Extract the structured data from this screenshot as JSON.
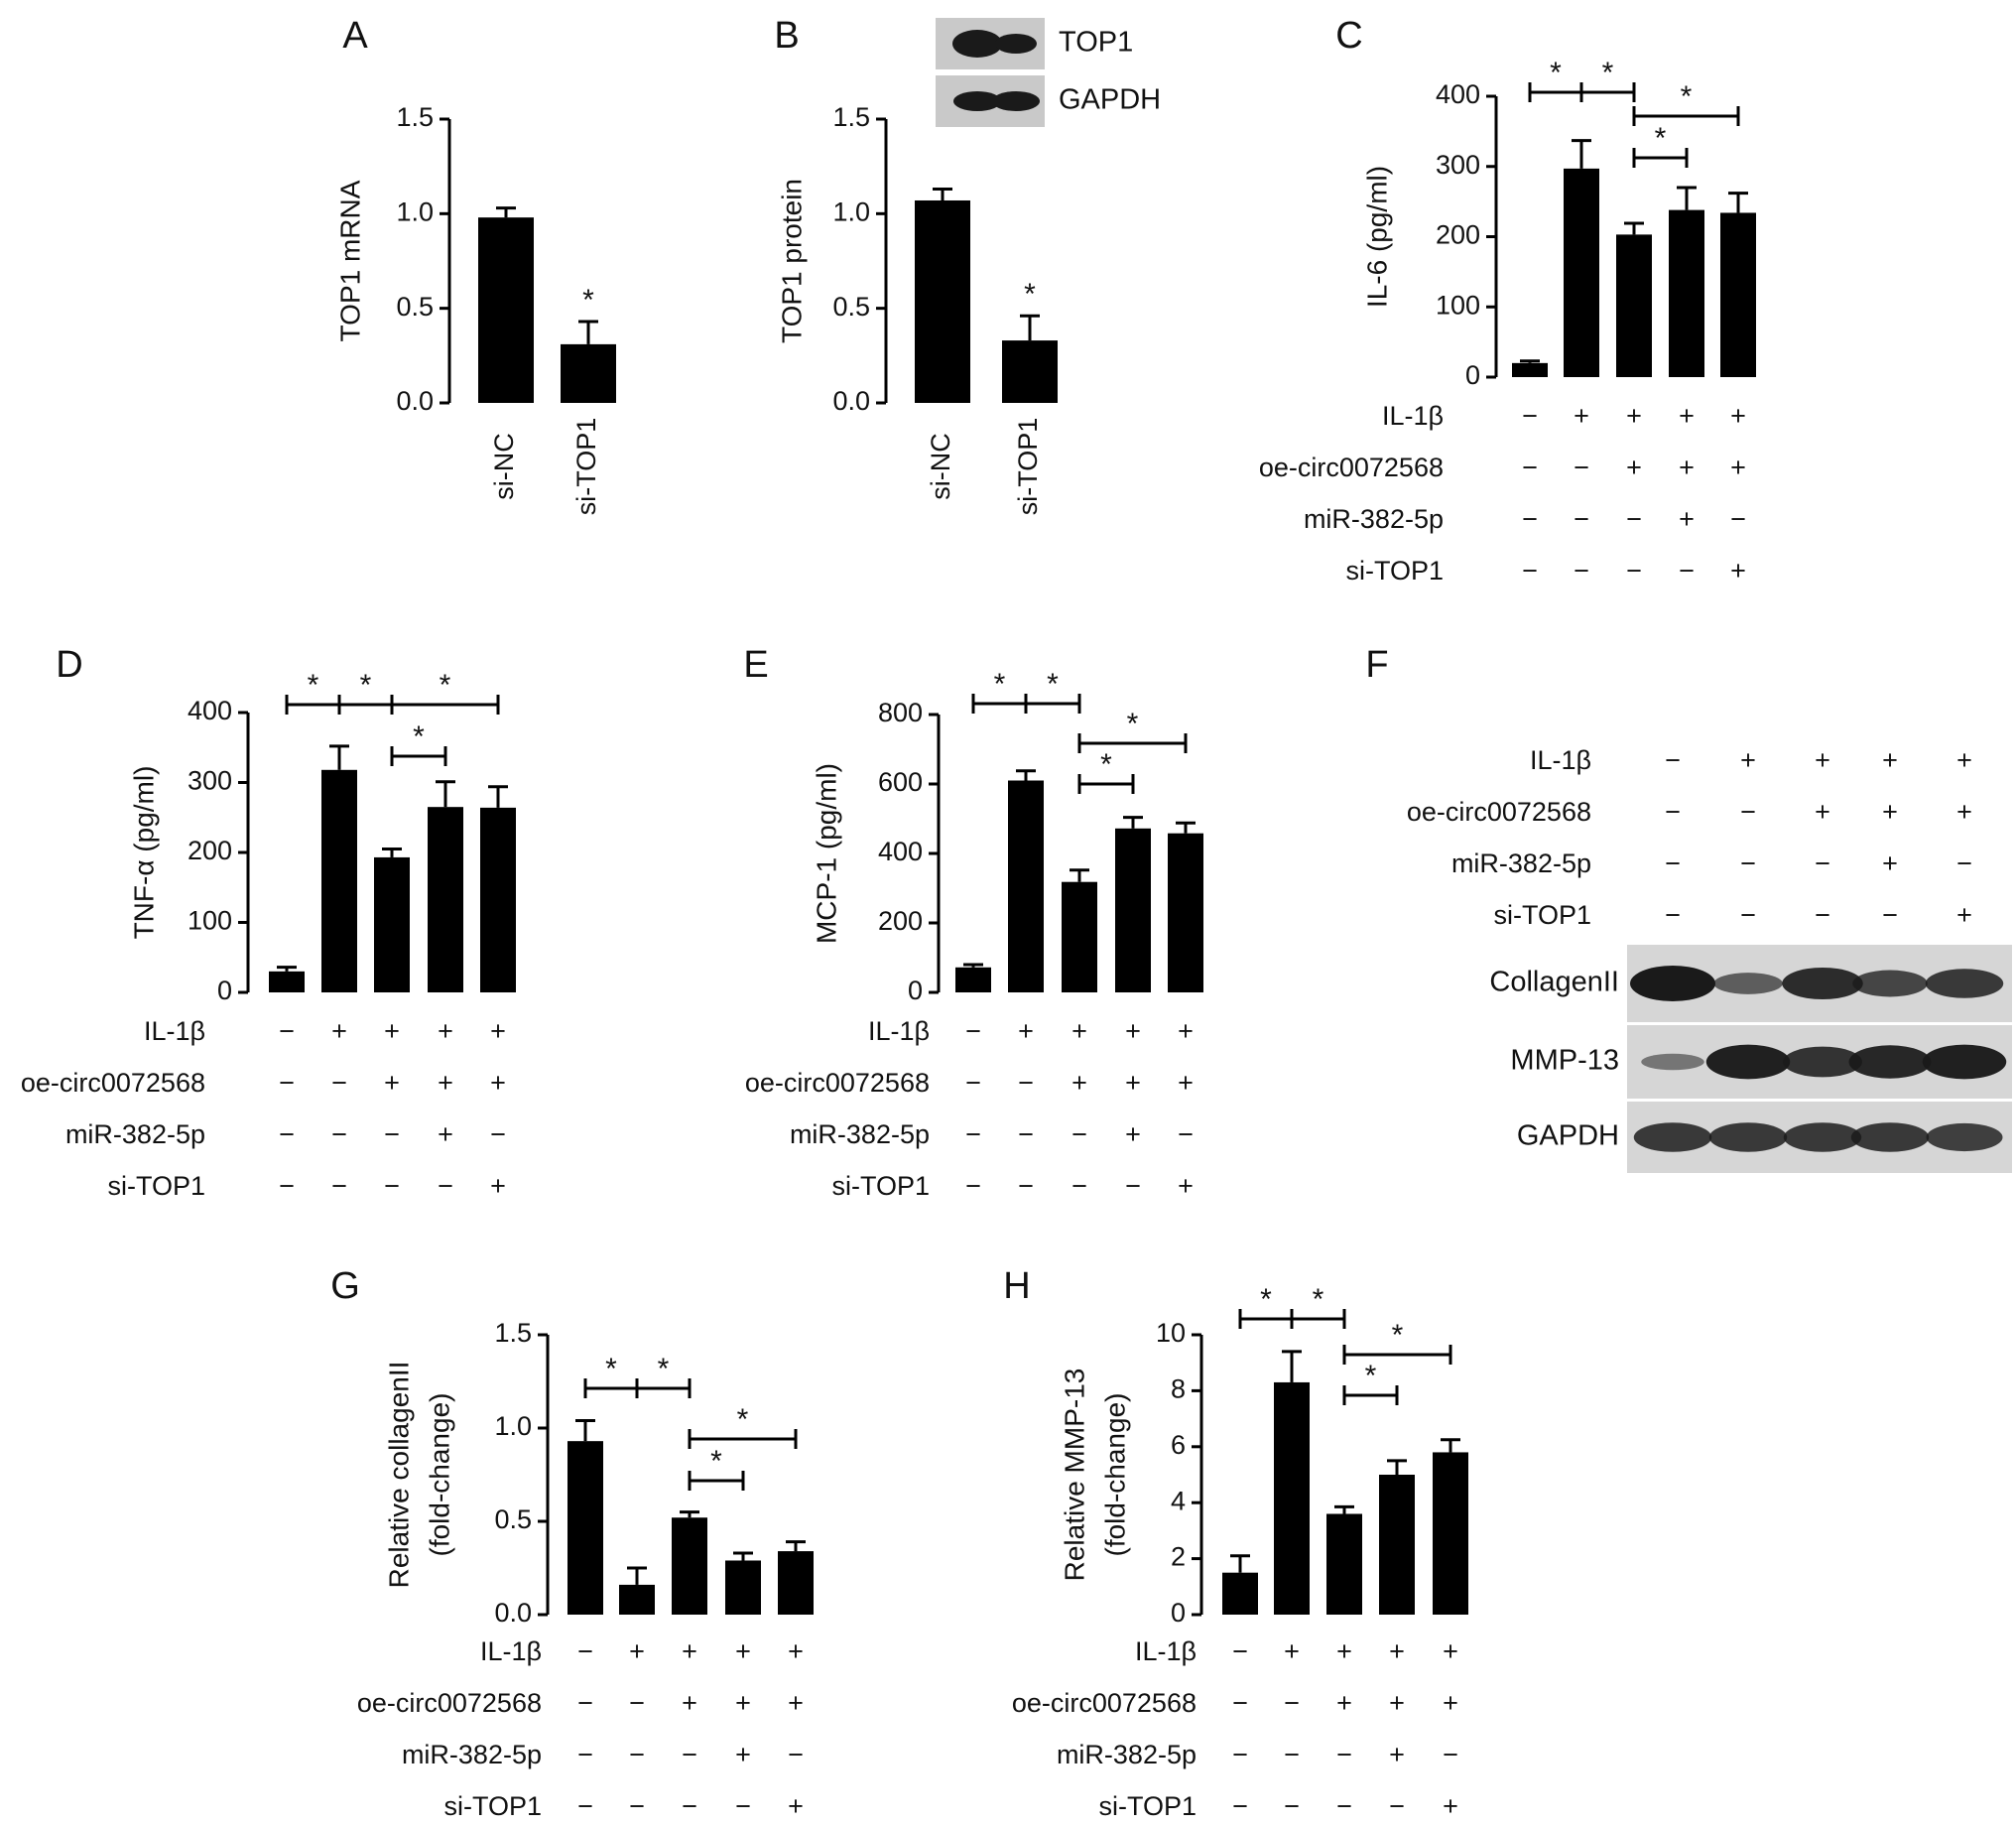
{
  "chart_data": [
    {
      "panel": "A",
      "type": "bar",
      "ylabel": "TOP1 mRNA",
      "ylim": [
        0,
        1.5
      ],
      "yticks": [
        "0.0",
        "0.5",
        "1.0",
        "1.5"
      ],
      "categories": [
        "si-NC",
        "si-TOP1"
      ],
      "values": [
        0.98,
        0.31
      ],
      "errors": [
        0.05,
        0.12
      ],
      "marks": [
        "",
        "*"
      ]
    },
    {
      "panel": "B",
      "type": "bar",
      "ylabel": "TOP1 protein",
      "ylim": [
        0,
        1.5
      ],
      "yticks": [
        "0.0",
        "0.5",
        "1.0",
        "1.5"
      ],
      "categories": [
        "si-NC",
        "si-TOP1"
      ],
      "values": [
        1.07,
        0.33
      ],
      "errors": [
        0.06,
        0.13
      ],
      "marks": [
        "",
        "*"
      ],
      "blot_labels": [
        "TOP1",
        "GAPDH"
      ]
    },
    {
      "panel": "C",
      "type": "bar",
      "ylabel": "IL-6 (pg/ml)",
      "ylim": [
        0,
        400
      ],
      "yticks": [
        "0",
        "100",
        "200",
        "300",
        "400"
      ],
      "values": [
        20,
        297,
        203,
        238,
        234
      ],
      "errors": [
        3,
        40,
        16,
        32,
        28
      ],
      "treatments": [
        {
          "label": "IL-1β",
          "signs": [
            "−",
            "+",
            "+",
            "+",
            "+"
          ]
        },
        {
          "label": "oe-circ0072568",
          "signs": [
            "−",
            "−",
            "+",
            "+",
            "+"
          ]
        },
        {
          "label": "miR-382-5p",
          "signs": [
            "−",
            "−",
            "−",
            "+",
            "−"
          ]
        },
        {
          "label": "si-TOP1",
          "signs": [
            "−",
            "−",
            "−",
            "−",
            "+"
          ]
        }
      ],
      "significance": [
        {
          "from": 0,
          "to": 1,
          "level": "top1",
          "label": "*"
        },
        {
          "from": 1,
          "to": 2,
          "level": "top1",
          "label": "*"
        },
        {
          "from": 2,
          "to": 4,
          "level": "top2",
          "label": "*"
        },
        {
          "from": 2,
          "to": 3,
          "level": "mid",
          "label": "*"
        }
      ]
    },
    {
      "panel": "D",
      "type": "bar",
      "ylabel": "TNF-α (pg/ml)",
      "ylim": [
        0,
        400
      ],
      "yticks": [
        "0",
        "100",
        "200",
        "300",
        "400"
      ],
      "values": [
        30,
        318,
        193,
        265,
        264
      ],
      "errors": [
        6,
        34,
        12,
        36,
        30
      ],
      "treatments": [
        {
          "label": "IL-1β",
          "signs": [
            "−",
            "+",
            "+",
            "+",
            "+"
          ]
        },
        {
          "label": "oe-circ0072568",
          "signs": [
            "−",
            "−",
            "+",
            "+",
            "+"
          ]
        },
        {
          "label": "miR-382-5p",
          "signs": [
            "−",
            "−",
            "−",
            "+",
            "−"
          ]
        },
        {
          "label": "si-TOP1",
          "signs": [
            "−",
            "−",
            "−",
            "−",
            "+"
          ]
        }
      ],
      "significance": [
        {
          "from": 0,
          "to": 1,
          "level": "top1",
          "label": "*"
        },
        {
          "from": 1,
          "to": 2,
          "level": "top1",
          "label": "*"
        },
        {
          "from": 2,
          "to": 4,
          "level": "top1",
          "label": "*"
        },
        {
          "from": 2,
          "to": 3,
          "level": "mid",
          "label": "*"
        }
      ]
    },
    {
      "panel": "E",
      "type": "bar",
      "ylabel": "MCP-1 (pg/ml)",
      "ylim": [
        0,
        800
      ],
      "yticks": [
        "0",
        "200",
        "400",
        "600",
        "800"
      ],
      "values": [
        72,
        610,
        318,
        472,
        458
      ],
      "errors": [
        8,
        28,
        34,
        32,
        30
      ],
      "treatments": [
        {
          "label": "IL-1β",
          "signs": [
            "−",
            "+",
            "+",
            "+",
            "+"
          ]
        },
        {
          "label": "oe-circ0072568",
          "signs": [
            "−",
            "−",
            "+",
            "+",
            "+"
          ]
        },
        {
          "label": "miR-382-5p",
          "signs": [
            "−",
            "−",
            "−",
            "+",
            "−"
          ]
        },
        {
          "label": "si-TOP1",
          "signs": [
            "−",
            "−",
            "−",
            "−",
            "+"
          ]
        }
      ],
      "significance": [
        {
          "from": 0,
          "to": 1,
          "level": "top1",
          "label": "*"
        },
        {
          "from": 1,
          "to": 2,
          "level": "top1",
          "label": "*"
        },
        {
          "from": 2,
          "to": 4,
          "level": "top2",
          "label": "*"
        },
        {
          "from": 2,
          "to": 3,
          "level": "mid",
          "label": "*"
        }
      ]
    },
    {
      "panel": "G",
      "type": "bar",
      "ylabel": "Relative collagenII",
      "ylabel2": "(fold-change)",
      "ylim": [
        0,
        1.5
      ],
      "yticks": [
        "0.0",
        "0.5",
        "1.0",
        "1.5"
      ],
      "values": [
        0.93,
        0.16,
        0.52,
        0.29,
        0.34
      ],
      "errors": [
        0.11,
        0.09,
        0.03,
        0.04,
        0.05
      ],
      "treatments": [
        {
          "label": "IL-1β",
          "signs": [
            "−",
            "+",
            "+",
            "+",
            "+"
          ]
        },
        {
          "label": "oe-circ0072568",
          "signs": [
            "−",
            "−",
            "+",
            "+",
            "+"
          ]
        },
        {
          "label": "miR-382-5p",
          "signs": [
            "−",
            "−",
            "−",
            "+",
            "−"
          ]
        },
        {
          "label": "si-TOP1",
          "signs": [
            "−",
            "−",
            "−",
            "−",
            "+"
          ]
        }
      ],
      "significance": [
        {
          "from": 0,
          "to": 1,
          "level": "top1",
          "label": "*"
        },
        {
          "from": 1,
          "to": 2,
          "level": "top1",
          "label": "*"
        },
        {
          "from": 2,
          "to": 4,
          "level": "top2",
          "label": "*"
        },
        {
          "from": 2,
          "to": 3,
          "level": "mid",
          "label": "*"
        }
      ]
    },
    {
      "panel": "H",
      "type": "bar",
      "ylabel": "Relative MMP-13",
      "ylabel2": "(fold-change)",
      "ylim": [
        0,
        10
      ],
      "yticks": [
        "0",
        "2",
        "4",
        "6",
        "8",
        "10"
      ],
      "values": [
        1.5,
        8.3,
        3.6,
        5.0,
        5.8
      ],
      "errors": [
        0.6,
        1.1,
        0.25,
        0.5,
        0.45
      ],
      "treatments": [
        {
          "label": "IL-1β",
          "signs": [
            "−",
            "+",
            "+",
            "+",
            "+"
          ]
        },
        {
          "label": "oe-circ0072568",
          "signs": [
            "−",
            "−",
            "+",
            "+",
            "+"
          ]
        },
        {
          "label": "miR-382-5p",
          "signs": [
            "−",
            "−",
            "−",
            "+",
            "−"
          ]
        },
        {
          "label": "si-TOP1",
          "signs": [
            "−",
            "−",
            "−",
            "−",
            "+"
          ]
        }
      ],
      "significance": [
        {
          "from": 0,
          "to": 1,
          "level": "top1",
          "label": "*"
        },
        {
          "from": 1,
          "to": 2,
          "level": "top1",
          "label": "*"
        },
        {
          "from": 2,
          "to": 4,
          "level": "top2",
          "label": "*"
        },
        {
          "from": 2,
          "to": 3,
          "level": "mid",
          "label": "*"
        }
      ]
    }
  ],
  "blot_F": {
    "panel": "F",
    "treatments": [
      {
        "label": "IL-1β",
        "signs": [
          "−",
          "+",
          "+",
          "+",
          "+"
        ]
      },
      {
        "label": "oe-circ0072568",
        "signs": [
          "−",
          "−",
          "+",
          "+",
          "+"
        ]
      },
      {
        "label": "miR-382-5p",
        "signs": [
          "−",
          "−",
          "−",
          "+",
          "−"
        ]
      },
      {
        "label": "si-TOP1",
        "signs": [
          "−",
          "−",
          "−",
          "−",
          "+"
        ]
      }
    ],
    "rows": [
      {
        "label": "CollagenII",
        "intensity": [
          1.0,
          0.45,
          0.85,
          0.65,
          0.75
        ]
      },
      {
        "label": "MMP-13",
        "intensity": [
          0.25,
          0.95,
          0.8,
          0.9,
          0.95
        ]
      },
      {
        "label": "GAPDH",
        "intensity": [
          0.75,
          0.75,
          0.75,
          0.75,
          0.7
        ]
      }
    ]
  },
  "colors": {
    "bar": "#000000",
    "axis": "#000000",
    "text": "#111111",
    "blot_bg": "#c9c9c9",
    "band": "#1a1a1a"
  }
}
